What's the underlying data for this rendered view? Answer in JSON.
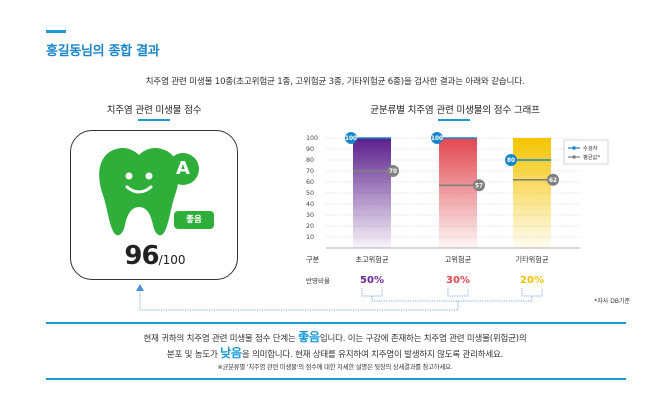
{
  "page": {
    "title": "홍길동님의 종합 결과",
    "intro": "치주염 관련 미생물 10종(초고위험균 1종, 고위험균 3종, 기타위험균 6종)을 검사한 결과는 아래와 같습니다."
  },
  "score_section": {
    "title": "치주염 관련 미생물 점수",
    "score": "96",
    "score_max": "/100",
    "grade_letter": "A",
    "grade_label": "좋음",
    "accent_color": "#2fae3a"
  },
  "graph_section": {
    "title": "균분류별 치주염 관련 미생물의 점수 그래프",
    "row_label_group": "구분",
    "row_label_ratio": "반영비율",
    "source_note": "*자사 DB기준"
  },
  "chart_data": {
    "type": "bar",
    "categories": [
      "초고위험균",
      "고위험균",
      "기타위험균"
    ],
    "ylim": [
      0,
      100
    ],
    "yticks": [
      10,
      20,
      30,
      40,
      50,
      60,
      70,
      80,
      90,
      100
    ],
    "series": [
      {
        "name": "수검자",
        "values": [
          100,
          100,
          80
        ],
        "color": "#1a86c9"
      },
      {
        "name": "평균값*",
        "values": [
          70,
          57,
          62
        ],
        "color": "#808080"
      }
    ],
    "ratios": [
      "50%",
      "30%",
      "20%"
    ],
    "bar_colors": [
      "#5b1e8c",
      "#e1484f",
      "#f5c400"
    ],
    "ratio_colors": [
      "#6a2a9a",
      "#e0484f",
      "#f2c200"
    ],
    "legend_placement": "top-right",
    "grid": true
  },
  "summary": {
    "line1_pre": "현재 귀하의 치주염 관련 미생물 점수 단계는 ",
    "line1_hl": "좋음",
    "line1_post": "입니다. 이는 구강에 존재하는 치주염 관련 미생물(위험균)의",
    "line2_pre": "분포 및 농도가 ",
    "line2_hl": "낮음",
    "line2_post": "을 의미합니다. 현재 상태를 유지하여 치주염이 발생하지 않도록 관리하세요.",
    "note": "※균분류별 '치주염 관련 미생물'의 점수에 대한 자세한 설명은 뒷장의 상세결과를 참고하세요."
  }
}
